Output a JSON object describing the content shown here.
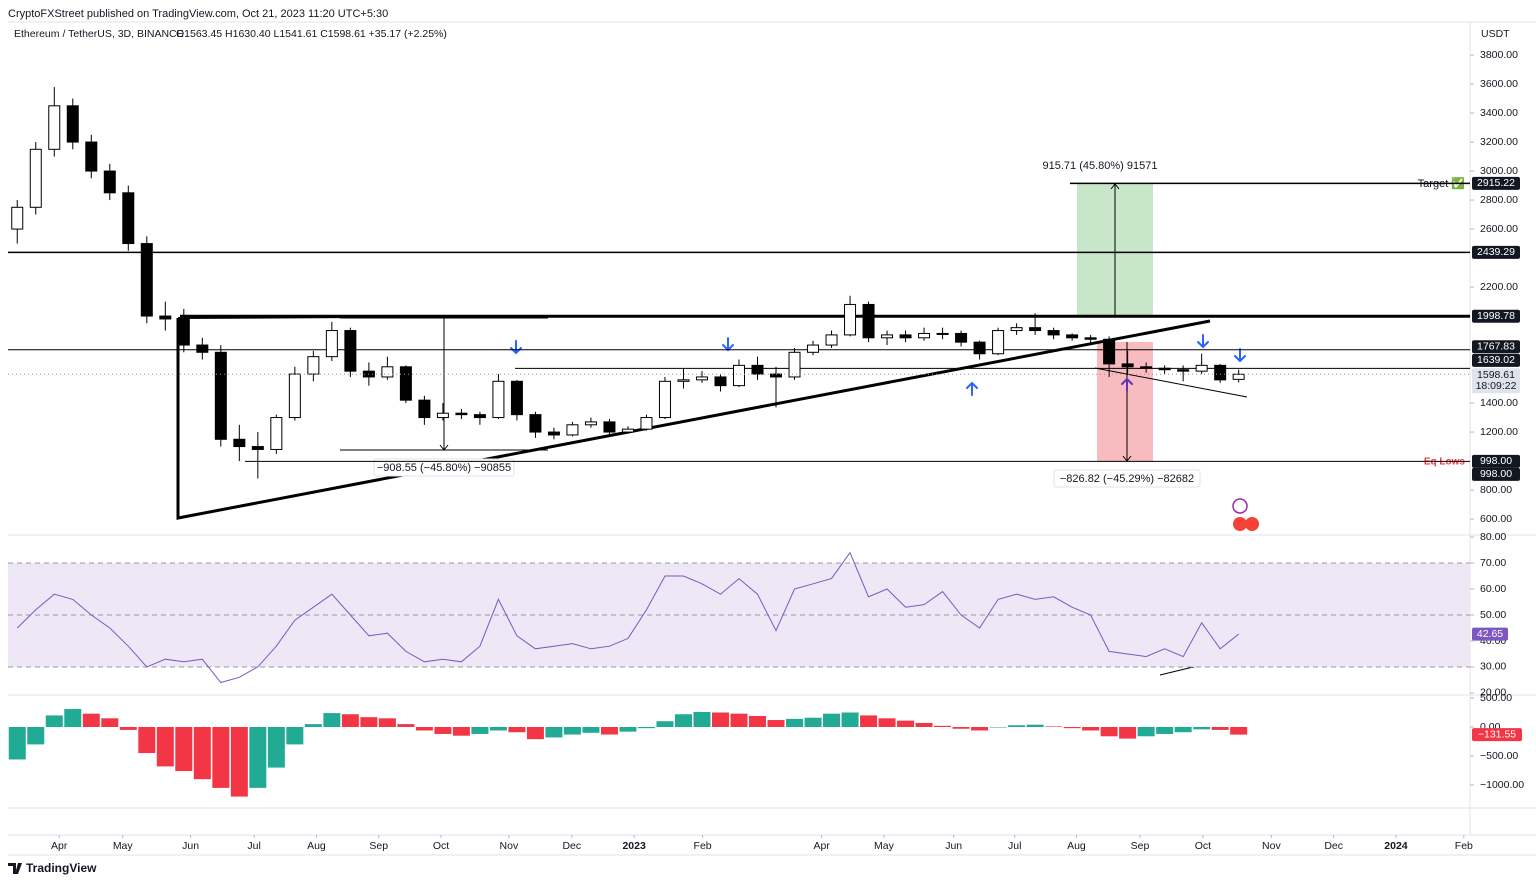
{
  "header": {
    "publisher": "CryptoFXStreet published on TradingView.com, Oct 21, 2023 11:20 UTC+5:30",
    "footer": "TradingView"
  },
  "chart_data": [
    {
      "type": "candlestick",
      "title": "Ethereum / TetherUS, 3D, BINANCE",
      "ohlc": "O1563.45 H1630.40 L1541.61 C1598.61 +35.17 (+2.25%)",
      "axis_unit": "USDT",
      "up_color": "#ffffff",
      "down_color": "#000000",
      "x": [
        1.5,
        4.5,
        7.5,
        10.5,
        13.5,
        16.5,
        19.5,
        22.5,
        25.5,
        28.5,
        31.5,
        34.5,
        37.5,
        40.5,
        43.5,
        46.5,
        49.5,
        52.5,
        55.5,
        58.5,
        61.5,
        64.5,
        67.5,
        70.5,
        73.5,
        76.5,
        79.5,
        82.5,
        85.5,
        88.5,
        91.5,
        94.5,
        97.5,
        100.5,
        103.5,
        106.5,
        109.5,
        112.5,
        115.5,
        118.5,
        121.5,
        124.5,
        127.5,
        130.5,
        133.5,
        136.5,
        139.5,
        142.5,
        145.5,
        148.5,
        151.5,
        154.5,
        157.5,
        160.5,
        163.5,
        166.5,
        169.5,
        172.5,
        175.5,
        178.5,
        181.5,
        184.5,
        187.5,
        190.5,
        193.5,
        196.5,
        199.5
      ],
      "open": [
        2600,
        2750,
        3150,
        3450,
        3200,
        3000,
        2850,
        2500,
        2000,
        1980,
        1800,
        1750,
        1150,
        1100,
        1080,
        1300,
        1600,
        1720,
        1900,
        1620,
        1580,
        1650,
        1420,
        1300,
        1330,
        1320,
        1300,
        1550,
        1320,
        1200,
        1180,
        1250,
        1270,
        1200,
        1220,
        1300,
        1550,
        1560,
        1580,
        1520,
        1660,
        1600,
        1580,
        1750,
        1800,
        1870,
        2080,
        1850,
        1870,
        1850,
        1880,
        1880,
        1820,
        1740,
        1900,
        1920,
        1900,
        1870,
        1850,
        1840,
        1670,
        1650,
        1640,
        1630,
        1620,
        1660,
        1563.45
      ],
      "high": [
        2800,
        3200,
        3580,
        3500,
        3250,
        3050,
        2900,
        2550,
        2100,
        2050,
        1850,
        1800,
        1250,
        1200,
        1320,
        1650,
        1760,
        1960,
        1920,
        1680,
        1720,
        1660,
        1450,
        1400,
        1360,
        1340,
        1600,
        1560,
        1340,
        1230,
        1270,
        1300,
        1290,
        1240,
        1320,
        1580,
        1640,
        1620,
        1600,
        1700,
        1720,
        1650,
        1780,
        1830,
        1900,
        2140,
        2100,
        1900,
        1900,
        1920,
        1920,
        1900,
        1830,
        1920,
        1950,
        2020,
        1920,
        1880,
        1870,
        1860,
        1760,
        1680,
        1660,
        1660,
        1740,
        1670,
        1630.4
      ],
      "low": [
        2500,
        2700,
        3100,
        3150,
        2950,
        2800,
        2450,
        1950,
        1900,
        1750,
        1700,
        1100,
        1000,
        880,
        1050,
        1280,
        1550,
        1690,
        1580,
        1520,
        1560,
        1400,
        1250,
        1280,
        1290,
        1250,
        1290,
        1280,
        1160,
        1150,
        1170,
        1230,
        1180,
        1190,
        1210,
        1290,
        1500,
        1540,
        1480,
        1510,
        1560,
        1370,
        1560,
        1730,
        1780,
        1860,
        1820,
        1800,
        1820,
        1830,
        1840,
        1790,
        1700,
        1730,
        1870,
        1870,
        1840,
        1830,
        1800,
        1580,
        1600,
        1610,
        1600,
        1550,
        1600,
        1540,
        1541.61
      ],
      "close": [
        2750,
        3150,
        3450,
        3200,
        3000,
        2850,
        2500,
        2000,
        1980,
        1800,
        1750,
        1150,
        1100,
        1080,
        1300,
        1600,
        1720,
        1900,
        1620,
        1580,
        1650,
        1420,
        1300,
        1330,
        1320,
        1300,
        1550,
        1320,
        1200,
        1180,
        1250,
        1270,
        1200,
        1220,
        1300,
        1550,
        1560,
        1580,
        1520,
        1660,
        1600,
        1580,
        1750,
        1800,
        1870,
        2080,
        1850,
        1870,
        1850,
        1880,
        1880,
        1820,
        1740,
        1900,
        1920,
        1900,
        1870,
        1850,
        1840,
        1670,
        1650,
        1640,
        1630,
        1620,
        1660,
        1560,
        1598.61
      ],
      "countdown": "18:09:22",
      "xlim": [
        0,
        237
      ],
      "xticks": [
        {
          "value": 8.3,
          "label": "Apr"
        },
        {
          "value": 18.6,
          "label": "May"
        },
        {
          "value": 29.6,
          "label": "Jun"
        },
        {
          "value": 39.9,
          "label": "Jul"
        },
        {
          "value": 50.0,
          "label": "Aug"
        },
        {
          "value": 60.1,
          "label": "Sep"
        },
        {
          "value": 70.2,
          "label": "Oct"
        },
        {
          "value": 81.2,
          "label": "Nov"
        },
        {
          "value": 91.4,
          "label": "Dec"
        },
        {
          "value": 101.5,
          "label": "2023"
        },
        {
          "value": 112.6,
          "label": "Feb"
        },
        {
          "value": 131.9,
          "label": "Apr"
        },
        {
          "value": 142.0,
          "label": "May"
        },
        {
          "value": 153.3,
          "label": "Jun"
        },
        {
          "value": 163.2,
          "label": "Jul"
        },
        {
          "value": 173.2,
          "label": "Aug"
        },
        {
          "value": 183.5,
          "label": "Sep"
        },
        {
          "value": 193.7,
          "label": "Oct"
        },
        {
          "value": 204.8,
          "label": "Nov"
        },
        {
          "value": 214.9,
          "label": "Dec"
        },
        {
          "value": 225.0,
          "label": "2024"
        },
        {
          "value": 236.0,
          "label": "Feb"
        }
      ],
      "ylim": [
        490,
        4028
      ],
      "yticks": [
        {
          "value": 3800,
          "label": "3800.00"
        },
        {
          "value": 3600,
          "label": "3600.00"
        },
        {
          "value": 3400,
          "label": "3400.00"
        },
        {
          "value": 3200,
          "label": "3200.00"
        },
        {
          "value": 3000,
          "label": "3000.00"
        },
        {
          "value": 2800,
          "label": "2800.00"
        },
        {
          "value": 2600,
          "label": "2600.00"
        },
        {
          "value": 2200,
          "label": "2200.00"
        },
        {
          "value": 1400,
          "label": "1400.00"
        },
        {
          "value": 1200,
          "label": "1200.00"
        },
        {
          "value": 800,
          "label": "800.00"
        },
        {
          "value": 600,
          "label": "600.00"
        }
      ],
      "price_lines": [
        2915.22,
        2439.29,
        1998.78,
        1767.83,
        1639.02,
        {
          "value": 998,
          "label": "998.00"
        },
        {
          "value": 998,
          "label": "998.00"
        }
      ],
      "annotations": {
        "target": "Target ✅",
        "eq_lows": "Eq Lows",
        "measure_up": "915.71 (45.80%) 91571",
        "measure_down_1": "−908.55 (−45.80%) −90855",
        "measure_down_2": "−826.82 (−45.29%) −82682"
      }
    },
    {
      "type": "line",
      "color": "#7e57c2",
      "band": [
        30,
        70
      ],
      "band_color": "#ede7f6",
      "levels": [
        70,
        50,
        30
      ],
      "x": [
        1.5,
        4.5,
        7.5,
        10.5,
        13.5,
        16.5,
        19.5,
        22.5,
        25.5,
        28.5,
        31.5,
        34.5,
        37.5,
        40.5,
        43.5,
        46.5,
        49.5,
        52.5,
        55.5,
        58.5,
        61.5,
        64.5,
        67.5,
        70.5,
        73.5,
        76.5,
        79.5,
        82.5,
        85.5,
        88.5,
        91.5,
        94.5,
        97.5,
        100.5,
        103.5,
        106.5,
        109.5,
        112.5,
        115.5,
        118.5,
        121.5,
        124.5,
        127.5,
        130.5,
        133.5,
        136.5,
        139.5,
        142.5,
        145.5,
        148.5,
        151.5,
        154.5,
        157.5,
        160.5,
        163.5,
        166.5,
        169.5,
        172.5,
        175.5,
        178.5,
        181.5,
        184.5,
        187.5,
        190.5,
        193.5,
        196.5,
        199.5
      ],
      "values": [
        45,
        52,
        58,
        56,
        50,
        45,
        38,
        30,
        33,
        32,
        33,
        24,
        26,
        30,
        38,
        48,
        53,
        58,
        50,
        42,
        43,
        36,
        32,
        33,
        32,
        38,
        56,
        42,
        37,
        38,
        39,
        37,
        38,
        41,
        52,
        65,
        65,
        62,
        58,
        64,
        58,
        44,
        60,
        62,
        64,
        74,
        57,
        60,
        53,
        54,
        59,
        50,
        45,
        56,
        58,
        56,
        57,
        53,
        50,
        36,
        35,
        34,
        37,
        34,
        47,
        37,
        42.65
      ],
      "xlim": [
        0,
        237
      ],
      "ylim": [
        19.2,
        80.8
      ],
      "yticks": [
        {
          "value": 80,
          "label": "80.00"
        },
        {
          "value": 70,
          "label": "70.00"
        },
        {
          "value": 60,
          "label": "60.00"
        },
        {
          "value": 50,
          "label": "50.00"
        },
        {
          "value": 40,
          "label": "40.00"
        },
        {
          "value": 30,
          "label": "30.00"
        },
        {
          "value": 20,
          "label": "20.00"
        }
      ]
    },
    {
      "type": "bar",
      "colors": {
        "rising": "#22ab94",
        "falling": "#f23645"
      },
      "x": [
        1.5,
        4.5,
        7.5,
        10.5,
        13.5,
        16.5,
        19.5,
        22.5,
        25.5,
        28.5,
        31.5,
        34.5,
        37.5,
        40.5,
        43.5,
        46.5,
        49.5,
        52.5,
        55.5,
        58.5,
        61.5,
        64.5,
        67.5,
        70.5,
        73.5,
        76.5,
        79.5,
        82.5,
        85.5,
        88.5,
        91.5,
        94.5,
        97.5,
        100.5,
        103.5,
        106.5,
        109.5,
        112.5,
        115.5,
        118.5,
        121.5,
        124.5,
        127.5,
        130.5,
        133.5,
        136.5,
        139.5,
        142.5,
        145.5,
        148.5,
        151.5,
        154.5,
        157.5,
        160.5,
        163.5,
        166.5,
        169.5,
        172.5,
        175.5,
        178.5,
        181.5,
        184.5,
        187.5,
        190.5,
        193.5,
        196.5,
        199.5
      ],
      "values": [
        -560,
        -300,
        200,
        310,
        230,
        150,
        -50,
        -450,
        -680,
        -760,
        -900,
        -1050,
        -1200,
        -1050,
        -700,
        -300,
        50,
        240,
        220,
        170,
        150,
        50,
        -60,
        -120,
        -150,
        -120,
        -60,
        -90,
        -210,
        -180,
        -130,
        -100,
        -130,
        -80,
        -20,
        100,
        220,
        260,
        250,
        230,
        190,
        120,
        140,
        160,
        230,
        250,
        200,
        150,
        110,
        70,
        20,
        -30,
        -60,
        0,
        30,
        40,
        10,
        -20,
        -60,
        -160,
        -200,
        -160,
        -120,
        -90,
        -40,
        -50,
        -131.55
      ],
      "value_labels": {
        "66": "−131.55"
      },
      "xlim": [
        0,
        237
      ],
      "ylim": [
        -1397,
        552
      ],
      "yticks": [
        {
          "value": 500,
          "label": "500.00"
        },
        {
          "value": 0,
          "label": "0.00"
        },
        {
          "value": -500,
          "label": "−500.00"
        },
        {
          "value": -1000,
          "label": "−1000.00"
        }
      ]
    }
  ]
}
